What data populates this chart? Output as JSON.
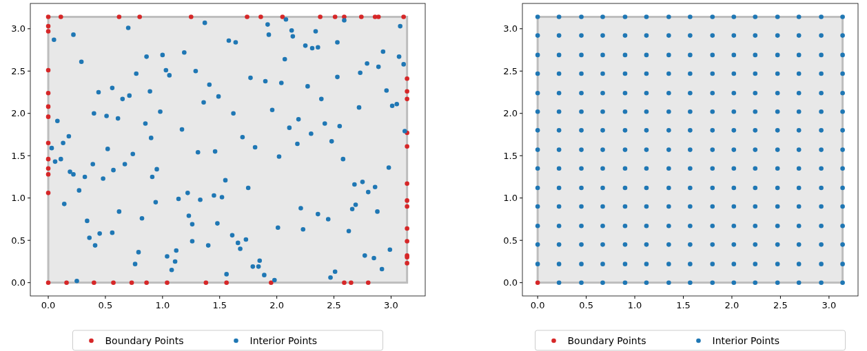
{
  "chart_data": [
    {
      "type": "scatter",
      "xlim": [
        -0.157,
        3.299
      ],
      "ylim": [
        -0.157,
        3.299
      ],
      "xticks": [
        {
          "value": 0,
          "label": "0.0"
        },
        0.5,
        {
          "value": 1,
          "label": "1.0"
        },
        1.5,
        {
          "value": 2,
          "label": "2.0"
        },
        2.5,
        {
          "value": 3,
          "label": "3.0"
        }
      ],
      "yticks": [
        {
          "value": 0,
          "label": "0.0"
        },
        0.5,
        {
          "value": 1,
          "label": "1.0"
        },
        1.5,
        {
          "value": 2,
          "label": "2.0"
        },
        2.5,
        {
          "value": 3,
          "label": "3.0"
        }
      ],
      "legend": "bottom",
      "marker": "circle",
      "series": [
        {
          "name": "Boundary Points",
          "color": "#d62728",
          "x": [
            0.11,
            0.62,
            0.8,
            1.25,
            1.74,
            1.86,
            2.05,
            2.38,
            2.51,
            2.59,
            2.74,
            2.86,
            2.89,
            3.11,
            0,
            0,
            0,
            0,
            0,
            0,
            0,
            0,
            0,
            0,
            0,
            0,
            0,
            0.16,
            0.4,
            0.57,
            0.73,
            0.86,
            1.04,
            1.38,
            1.56,
            1.95,
            2.59,
            2.65,
            2.8,
            3.14,
            3.14,
            3.14,
            3.14,
            3.14,
            3.14,
            3.14,
            3.14,
            3.14,
            3.14,
            3.14,
            3.14,
            3.14
          ],
          "values": [
            3.14,
            3.14,
            3.14,
            3.14,
            3.14,
            3.14,
            3.14,
            3.14,
            3.14,
            3.14,
            3.14,
            3.14,
            3.14,
            3.14,
            3.03,
            2.97,
            2.51,
            2.24,
            2.08,
            1.96,
            1.65,
            1.46,
            1.35,
            1.28,
            1.06,
            0,
            3.14,
            0,
            0,
            0,
            0,
            0,
            0,
            0,
            0,
            0,
            0,
            0,
            0,
            2.41,
            2.26,
            2.17,
            1.77,
            1.61,
            1.17,
            0.97,
            0.9,
            0.64,
            0.49,
            0.32,
            0.3,
            0.23
          ]
        },
        {
          "name": "Interior Points",
          "color": "#1f77b4",
          "x": [
            0.05,
            0.22,
            0.29,
            0.7,
            1.37,
            0.86,
            1.0,
            1.19,
            0.77,
            1.03,
            1.06,
            1.29,
            1.41,
            0.56,
            0.44,
            0.89,
            0.71,
            0.65,
            1.36,
            1.49,
            0.4,
            0.51,
            0.61,
            0.98,
            0.08,
            0.85,
            1.17,
            0.18,
            0.9,
            0.13,
            0.03,
            0.52,
            1.31,
            1.46,
            2.08,
            2.59,
            1.92,
            3.08,
            2.13,
            1.93,
            2.14,
            2.34,
            1.58,
            1.64,
            2.25,
            2.31,
            2.36,
            2.53,
            2.93,
            2.07,
            2.79,
            2.89,
            3.07,
            3.11,
            2.73,
            1.77,
            1.9,
            2.04,
            2.53,
            2.27,
            2.96,
            2.39,
            3.01,
            3.05,
            2.72,
            1.62,
            1.96,
            2.19,
            2.42,
            2.55,
            2.11,
            3.12,
            1.7,
            2.3,
            2.48,
            1.81,
            2.18,
            0.06,
            0.11,
            0.19,
            0.22,
            0.32,
            0.39,
            0.48,
            0.57,
            0.67,
            0.74,
            0.27,
            0.14,
            0.91,
            0.95,
            0.94,
            0.62,
            0.82,
            0.34,
            0.45,
            0.56,
            0.36,
            0.41,
            0.79,
            0.76,
            0.25,
            1.14,
            1.22,
            1.33,
            1.45,
            1.52,
            1.55,
            1.23,
            1.26,
            1.48,
            1.26,
            1.4,
            1.04,
            1.12,
            1.11,
            1.08,
            1.56,
            2.02,
            2.58,
            2.98,
            1.75,
            2.68,
            2.75,
            2.86,
            2.8,
            2.21,
            2.69,
            2.66,
            2.88,
            2.36,
            2.45,
            2.01,
            2.23,
            2.63,
            1.61,
            1.66,
            1.73,
            1.68,
            2.99,
            2.77,
            2.85,
            1.85,
            1.79,
            1.84,
            2.92,
            1.89,
            2.51,
            2.47,
            1.98
          ],
          "values": [
            2.87,
            2.93,
            2.61,
            3.01,
            3.07,
            2.67,
            2.69,
            2.72,
            2.47,
            2.51,
            2.45,
            2.5,
            2.34,
            2.3,
            2.25,
            2.26,
            2.21,
            2.17,
            2.13,
            2.2,
            2.0,
            1.97,
            1.94,
            2.02,
            1.91,
            1.88,
            1.81,
            1.73,
            1.71,
            1.65,
            1.59,
            1.58,
            1.54,
            1.55,
            3.11,
            3.1,
            3.05,
            3.03,
            2.98,
            2.93,
            2.91,
            2.97,
            2.86,
            2.84,
            2.8,
            2.77,
            2.78,
            2.84,
            2.73,
            2.64,
            2.59,
            2.55,
            2.67,
            2.58,
            2.48,
            2.42,
            2.38,
            2.36,
            2.43,
            2.32,
            2.27,
            2.17,
            2.09,
            2.11,
            2.07,
            2.0,
            2.04,
            1.93,
            1.88,
            1.85,
            1.83,
            1.79,
            1.72,
            1.76,
            1.67,
            1.6,
            1.64,
            1.43,
            1.46,
            1.31,
            1.28,
            1.25,
            1.4,
            1.23,
            1.33,
            1.4,
            1.52,
            1.09,
            0.93,
            1.25,
            1.34,
            0.95,
            0.84,
            0.76,
            0.73,
            0.58,
            0.59,
            0.53,
            0.44,
            0.36,
            0.22,
            0.02,
            0.99,
            1.06,
            0.98,
            1.03,
            1.01,
            1.21,
            0.79,
            0.69,
            0.7,
            0.49,
            0.44,
            0.31,
            0.38,
            0.25,
            0.15,
            0.1,
            1.49,
            1.46,
            1.36,
            1.12,
            1.16,
            1.19,
            1.13,
            1.07,
            0.88,
            0.92,
            0.87,
            0.84,
            0.81,
            0.75,
            0.65,
            0.63,
            0.61,
            0.56,
            0.47,
            0.51,
            0.4,
            0.39,
            0.32,
            0.29,
            0.26,
            0.19,
            0.19,
            0.16,
            0.09,
            0.13,
            0.06,
            0.03
          ]
        }
      ]
    },
    {
      "type": "scatter",
      "xlim": [
        -0.157,
        3.299
      ],
      "ylim": [
        -0.157,
        3.299
      ],
      "xticks": [
        {
          "value": 0,
          "label": "0.0"
        },
        0.5,
        {
          "value": 1,
          "label": "1.0"
        },
        1.5,
        {
          "value": 2,
          "label": "2.0"
        },
        2.5,
        {
          "value": 3,
          "label": "3.0"
        }
      ],
      "yticks": [
        {
          "value": 0,
          "label": "0.0"
        },
        0.5,
        {
          "value": 1,
          "label": "1.0"
        },
        1.5,
        {
          "value": 2,
          "label": "2.0"
        },
        2.5,
        {
          "value": 3,
          "label": "3.0"
        }
      ],
      "legend": "bottom",
      "marker": "circle",
      "series": [
        {
          "name": "Boundary Points",
          "color": "#d62728",
          "x": [
            0
          ],
          "values": [
            0
          ]
        },
        {
          "name": "Interior Points",
          "color": "#1f77b4",
          "x": [
            0,
            0,
            0,
            0,
            0,
            0,
            0,
            0,
            0,
            0,
            0,
            0,
            0,
            0,
            0.22,
            0.22,
            0.22,
            0.22,
            0.22,
            0.22,
            0.22,
            0.22,
            0.22,
            0.22,
            0.22,
            0.22,
            0.22,
            0.22,
            0.22,
            0.45,
            0.45,
            0.45,
            0.45,
            0.45,
            0.45,
            0.45,
            0.45,
            0.45,
            0.45,
            0.45,
            0.45,
            0.45,
            0.45,
            0.45,
            0.67,
            0.67,
            0.67,
            0.67,
            0.67,
            0.67,
            0.67,
            0.67,
            0.67,
            0.67,
            0.67,
            0.67,
            0.67,
            0.67,
            0.67,
            0.9,
            0.9,
            0.9,
            0.9,
            0.9,
            0.9,
            0.9,
            0.9,
            0.9,
            0.9,
            0.9,
            0.9,
            0.9,
            0.9,
            0.9,
            1.12,
            1.12,
            1.12,
            1.12,
            1.12,
            1.12,
            1.12,
            1.12,
            1.12,
            1.12,
            1.12,
            1.12,
            1.12,
            1.12,
            1.12,
            1.35,
            1.35,
            1.35,
            1.35,
            1.35,
            1.35,
            1.35,
            1.35,
            1.35,
            1.35,
            1.35,
            1.35,
            1.35,
            1.35,
            1.35,
            1.57,
            1.57,
            1.57,
            1.57,
            1.57,
            1.57,
            1.57,
            1.57,
            1.57,
            1.57,
            1.57,
            1.57,
            1.57,
            1.57,
            1.57,
            1.8,
            1.8,
            1.8,
            1.8,
            1.8,
            1.8,
            1.8,
            1.8,
            1.8,
            1.8,
            1.8,
            1.8,
            1.8,
            1.8,
            1.8,
            2.02,
            2.02,
            2.02,
            2.02,
            2.02,
            2.02,
            2.02,
            2.02,
            2.02,
            2.02,
            2.02,
            2.02,
            2.02,
            2.02,
            2.02,
            2.24,
            2.24,
            2.24,
            2.24,
            2.24,
            2.24,
            2.24,
            2.24,
            2.24,
            2.24,
            2.24,
            2.24,
            2.24,
            2.24,
            2.24,
            2.47,
            2.47,
            2.47,
            2.47,
            2.47,
            2.47,
            2.47,
            2.47,
            2.47,
            2.47,
            2.47,
            2.47,
            2.47,
            2.47,
            2.47,
            2.69,
            2.69,
            2.69,
            2.69,
            2.69,
            2.69,
            2.69,
            2.69,
            2.69,
            2.69,
            2.69,
            2.69,
            2.69,
            2.69,
            2.69,
            2.92,
            2.92,
            2.92,
            2.92,
            2.92,
            2.92,
            2.92,
            2.92,
            2.92,
            2.92,
            2.92,
            2.92,
            2.92,
            2.92,
            2.92,
            3.14,
            3.14,
            3.14,
            3.14,
            3.14,
            3.14,
            3.14,
            3.14,
            3.14,
            3.14,
            3.14,
            3.14,
            3.14,
            3.14,
            3.14
          ],
          "values": [
            0.22,
            0.45,
            0.67,
            0.9,
            1.12,
            1.35,
            1.57,
            1.8,
            2.02,
            2.24,
            2.47,
            2.69,
            2.92,
            3.14,
            0,
            0.22,
            0.45,
            0.67,
            0.9,
            1.12,
            1.35,
            1.57,
            1.8,
            2.02,
            2.24,
            2.47,
            2.69,
            2.92,
            3.14,
            0,
            0.22,
            0.45,
            0.67,
            0.9,
            1.12,
            1.35,
            1.57,
            1.8,
            2.02,
            2.24,
            2.47,
            2.69,
            2.92,
            3.14,
            0,
            0.22,
            0.45,
            0.67,
            0.9,
            1.12,
            1.35,
            1.57,
            1.8,
            2.02,
            2.24,
            2.47,
            2.69,
            2.92,
            3.14,
            0,
            0.22,
            0.45,
            0.67,
            0.9,
            1.12,
            1.35,
            1.57,
            1.8,
            2.02,
            2.24,
            2.47,
            2.69,
            2.92,
            3.14,
            0,
            0.22,
            0.45,
            0.67,
            0.9,
            1.12,
            1.35,
            1.57,
            1.8,
            2.02,
            2.24,
            2.47,
            2.69,
            2.92,
            3.14,
            0,
            0.22,
            0.45,
            0.67,
            0.9,
            1.12,
            1.35,
            1.57,
            1.8,
            2.02,
            2.24,
            2.47,
            2.69,
            2.92,
            3.14,
            0,
            0.22,
            0.45,
            0.67,
            0.9,
            1.12,
            1.35,
            1.57,
            1.8,
            2.02,
            2.24,
            2.47,
            2.69,
            2.92,
            3.14,
            0,
            0.22,
            0.45,
            0.67,
            0.9,
            1.12,
            1.35,
            1.57,
            1.8,
            2.02,
            2.24,
            2.47,
            2.69,
            2.92,
            3.14,
            0,
            0.22,
            0.45,
            0.67,
            0.9,
            1.12,
            1.35,
            1.57,
            1.8,
            2.02,
            2.24,
            2.47,
            2.69,
            2.92,
            3.14,
            0,
            0.22,
            0.45,
            0.67,
            0.9,
            1.12,
            1.35,
            1.57,
            1.8,
            2.02,
            2.24,
            2.47,
            2.69,
            2.92,
            3.14,
            0,
            0.22,
            0.45,
            0.67,
            0.9,
            1.12,
            1.35,
            1.57,
            1.8,
            2.02,
            2.24,
            2.47,
            2.69,
            2.92,
            3.14,
            0,
            0.22,
            0.45,
            0.67,
            0.9,
            1.12,
            1.35,
            1.57,
            1.8,
            2.02,
            2.24,
            2.47,
            2.69,
            2.92,
            3.14,
            0,
            0.22,
            0.45,
            0.67,
            0.9,
            1.12,
            1.35,
            1.57,
            1.8,
            2.02,
            2.24,
            2.47,
            2.69,
            2.92,
            3.14,
            0,
            0.22,
            0.45,
            0.67,
            0.9,
            1.12,
            1.35,
            1.57,
            1.8,
            2.02,
            2.24,
            2.47,
            2.69,
            2.92,
            3.14
          ]
        }
      ]
    }
  ]
}
